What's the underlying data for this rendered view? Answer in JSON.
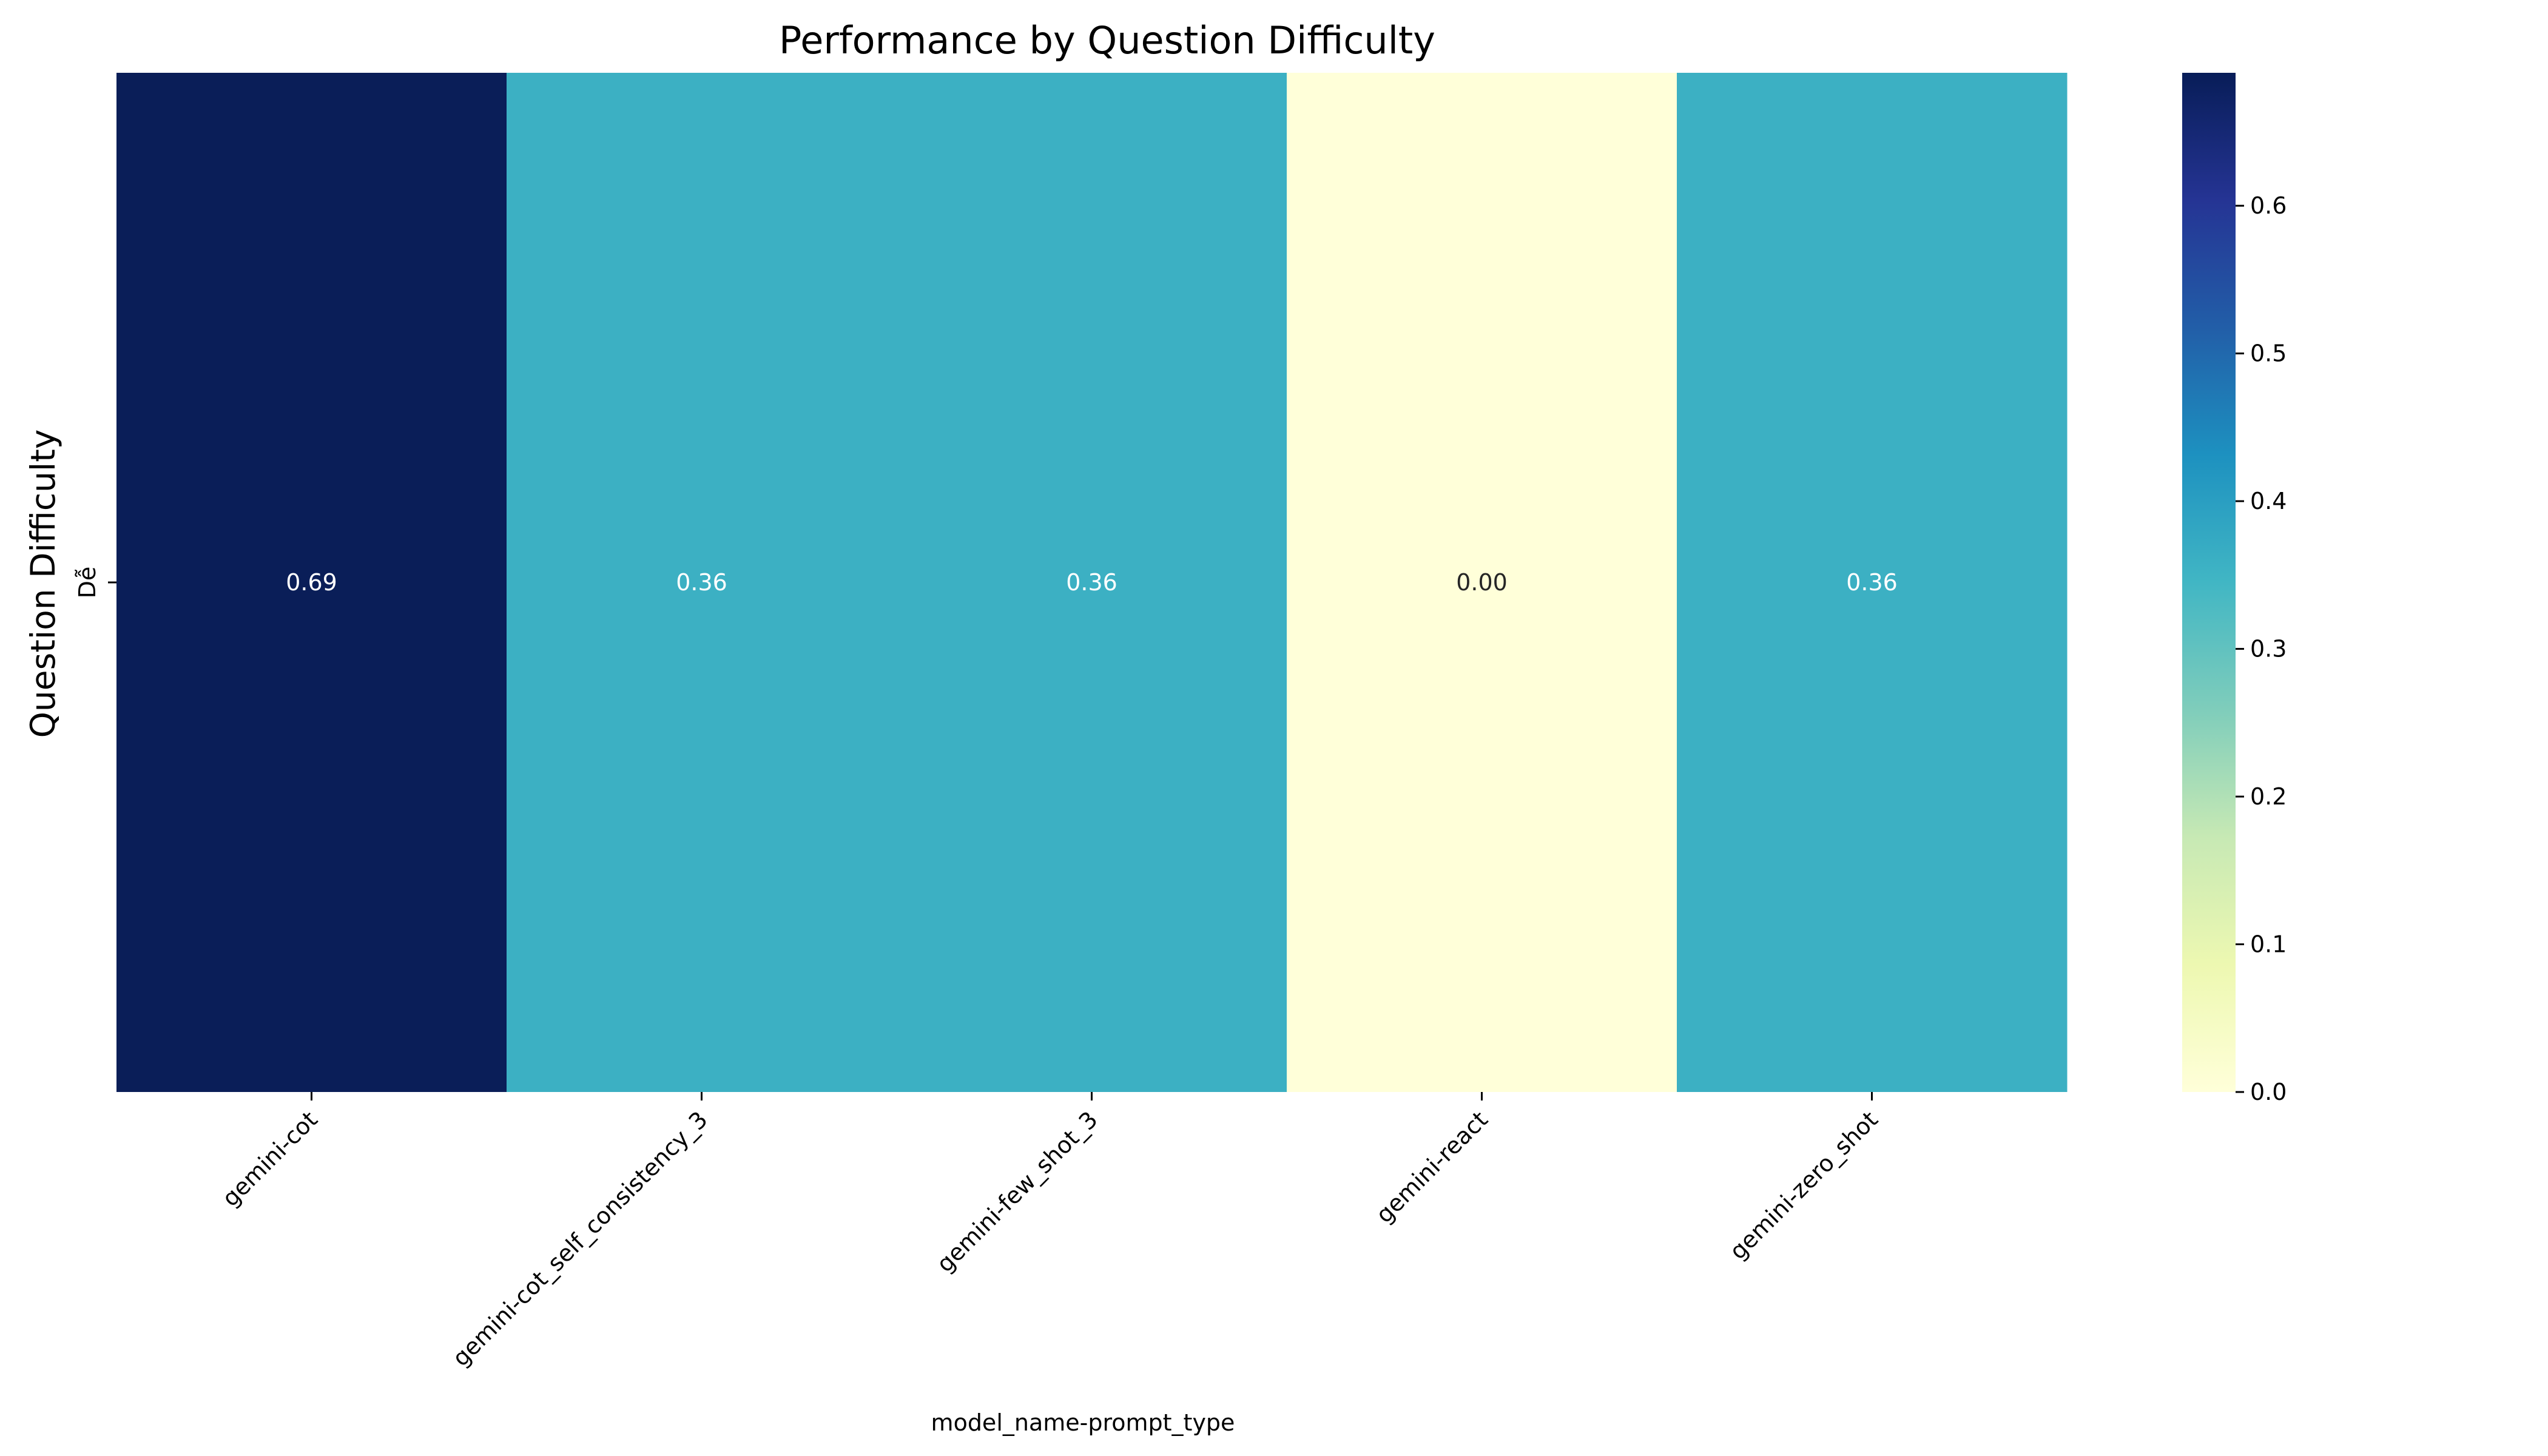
{
  "chart_data": {
    "type": "heatmap",
    "title": "Performance by Question Difficulty",
    "xlabel": "model_name-prompt_type",
    "ylabel": "Question Difficulty",
    "columns": [
      "gemini-cot",
      "gemini-cot_self_consistency_3",
      "gemini-few_shot_3",
      "gemini-react",
      "gemini-zero_shot"
    ],
    "rows": [
      "Dễ"
    ],
    "values": [
      [
        0.69,
        0.36,
        0.36,
        0.0,
        0.36
      ]
    ],
    "value_labels": [
      [
        "0.69",
        "0.36",
        "0.36",
        "0.00",
        "0.36"
      ]
    ],
    "colormap": "YlGnBu",
    "colorbar": {
      "range": [
        0.0,
        0.69
      ],
      "ticks": [
        0.0,
        0.1,
        0.2,
        0.3,
        0.4,
        0.5,
        0.6
      ],
      "tick_labels": [
        "0.0",
        "0.1",
        "0.2",
        "0.3",
        "0.4",
        "0.5",
        "0.6"
      ]
    },
    "colors": {
      "0.69": "#0a1e58",
      "0.36": "#3cb0c3",
      "0.00": "#ffffd9"
    }
  }
}
